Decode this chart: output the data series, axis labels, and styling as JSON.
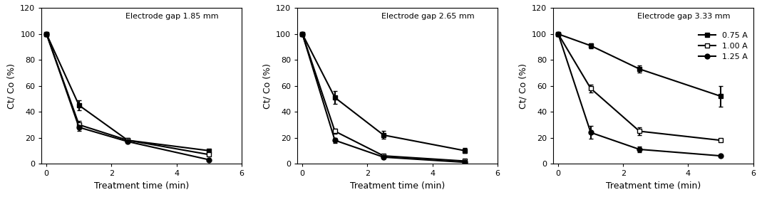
{
  "time": [
    0,
    1,
    2.5,
    5
  ],
  "gap1": {
    "label": "Electrode gap 1.85 mm",
    "s075": {
      "y": [
        100,
        45,
        18,
        10
      ],
      "yerr": [
        0,
        4,
        1.5,
        1
      ]
    },
    "s100": {
      "y": [
        100,
        30,
        18,
        7
      ],
      "yerr": [
        0,
        3,
        1.5,
        1
      ]
    },
    "s125": {
      "y": [
        100,
        28,
        17,
        3
      ],
      "yerr": [
        0,
        3,
        1,
        0.5
      ]
    }
  },
  "gap2": {
    "label": "Electrode gap 2.65 mm",
    "s075": {
      "y": [
        100,
        51,
        22,
        10
      ],
      "yerr": [
        0,
        5,
        3,
        2
      ]
    },
    "s100": {
      "y": [
        100,
        25,
        6,
        2
      ],
      "yerr": [
        0,
        2,
        1,
        0.5
      ]
    },
    "s125": {
      "y": [
        100,
        18,
        5,
        1
      ],
      "yerr": [
        0,
        2,
        1,
        0.5
      ]
    }
  },
  "gap3": {
    "label": "Electrode gap 3.33 mm",
    "s075": {
      "y": [
        100,
        91,
        73,
        52
      ],
      "yerr": [
        0,
        2,
        3,
        8
      ]
    },
    "s100": {
      "y": [
        100,
        58,
        25,
        18
      ],
      "yerr": [
        0,
        3,
        3,
        1
      ]
    },
    "s125": {
      "y": [
        100,
        24,
        11,
        6
      ],
      "yerr": [
        0,
        5,
        2,
        1
      ]
    }
  },
  "legend_labels": [
    "0.75 A",
    "1.00 A",
    "1.25 A"
  ],
  "xlabel": "Treatment time (min)",
  "ylabel": "Ct/ Co (%)",
  "xlim": [
    -0.15,
    6
  ],
  "ylim": [
    0,
    120
  ],
  "yticks": [
    0,
    20,
    40,
    60,
    80,
    100,
    120
  ],
  "xticks": [
    0,
    2,
    4,
    6
  ],
  "color": "#000000",
  "linewidth": 1.5,
  "markersize": 5,
  "capsize": 2,
  "tick_fontsize": 8,
  "label_fontsize": 9,
  "annot_fontsize": 8,
  "legend_fontsize": 8
}
